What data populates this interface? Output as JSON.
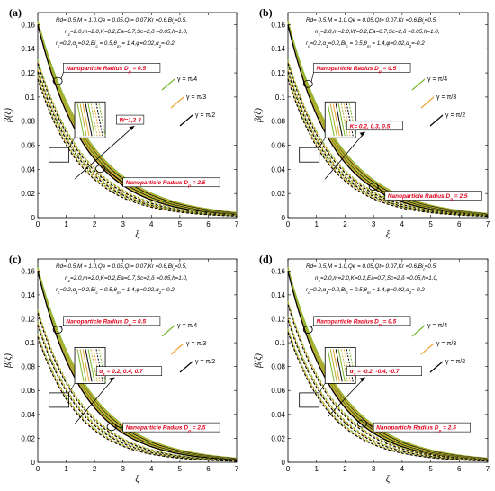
{
  "chart_data": [
    {
      "type": "line",
      "panel_label": "(a)",
      "xlabel": "ξ",
      "ylabel": "β(ξ)",
      "xlim": [
        0,
        7
      ],
      "ylim": [
        0,
        0.17
      ],
      "xticks": [
        "0",
        "1",
        "2",
        "3",
        "4",
        "5",
        "6",
        "7"
      ],
      "yticks": [
        "0",
        "0.02",
        "0.04",
        "0.06",
        "0.08",
        "0.1",
        "0.12",
        "0.14",
        "0.16"
      ],
      "params_line1": "Rd= 0.5,M = 1.0,Qe = 0.05,Qt= 0.07,Kr =0.6,Bi_t=0.5,",
      "params_line2": "n_1=2.0,m=2.0,K=0.2,Ea=0.7,Sc=2,δ =0.05,h=1.0,",
      "params_line3": "r_c=0.2,α_1=0.2,Bi_c = 0.5,θ_m = 1.4,φ=0.02,α_2=-0.2",
      "legend": [
        "γ = π/4",
        "γ = π/3",
        "γ = π/2"
      ],
      "annotation_small_radius": "Nanoparticle Radius D_p = 0.5",
      "annotation_large_radius": "Nanoparticle Radius D_p = 2.5",
      "annotation_param": "W=1,2 3",
      "solid_start": 0.163,
      "dashed_start": [
        0.131,
        0.124,
        0.118
      ],
      "decay_solid": 0.52,
      "decay_dashed": 0.58
    },
    {
      "type": "line",
      "panel_label": "(b)",
      "xlabel": "ξ",
      "ylabel": "β(ξ)",
      "xlim": [
        0,
        7
      ],
      "ylim": [
        0,
        0.17
      ],
      "xticks": [
        "0",
        "1",
        "2",
        "3",
        "4",
        "5",
        "6",
        "7"
      ],
      "yticks": [
        "0",
        "0.02",
        "0.04",
        "0.06",
        "0.08",
        "0.1",
        "0.12",
        "0.14",
        "0.16"
      ],
      "params_line1": "Rd= 0.5,M = 1.0,Qe = 0.05,Qt= 0.07,Kr =0.6,Bi_t=0.5,",
      "params_line2": "n_1=2.0,m=2.0,W=0.2,Ea=0.7,Sc=2,δ =0.05,h=1.0,",
      "params_line3": "r_c=0.2,α_1=0.2,Bi_c = 0.5,θ_m = 1.4,φ=0.02,α_2=-0.2",
      "legend": [
        "γ = π/4",
        "γ = π/3",
        "γ = π/2"
      ],
      "annotation_small_radius": "Nanoparticle Radius D_p = 0.5",
      "annotation_large_radius": "Nanoparticle Radius D_p = 2.5",
      "annotation_param": "K= 0.2, 0.3, 0.5",
      "solid_start": 0.163,
      "dashed_start": [
        0.131,
        0.124,
        0.118
      ],
      "decay_solid": 0.55,
      "decay_dashed": 0.6
    },
    {
      "type": "line",
      "panel_label": "(c)",
      "xlabel": "ξ",
      "ylabel": "β(ξ)",
      "xlim": [
        0,
        7
      ],
      "ylim": [
        0,
        0.17
      ],
      "xticks": [
        "0",
        "1",
        "2",
        "3",
        "4",
        "5",
        "6",
        "7"
      ],
      "yticks": [
        "0",
        "0.02",
        "0.04",
        "0.06",
        "0.08",
        "0.1",
        "0.12",
        "0.14",
        "0.16"
      ],
      "params_line1": "Rd= 0.5,M = 1.0,Qe = 0.05,Qt= 0.07,Kr =0.6,Bi_t=0.5,",
      "params_line2": "n_1=2.0,m=2.0,K=0.2,Ea=0.7,Sc=2,δ =0.05,h=1.0,",
      "params_line3": "r_c=0.2,α_1=0.2,Bi_c = 0.5,θ_m = 1.4,φ=0.02,α_2=-0.2",
      "legend": [
        "γ = π/4",
        "γ = π/3",
        "γ = π/2"
      ],
      "annotation_small_radius": "Nanoparticle Radius D_p = 0.5",
      "annotation_large_radius": "Nanoparticle Radius D_p = 2.5",
      "annotation_param": "α_1 = 0.2, 0.4, 0.7",
      "solid_start": 0.163,
      "dashed_start": [
        0.128,
        0.118,
        0.108
      ],
      "decay_solid": 0.55,
      "decay_dashed": 0.62
    },
    {
      "type": "line",
      "panel_label": "(d)",
      "xlabel": "ξ",
      "ylabel": "β(ξ)",
      "xlim": [
        0,
        7
      ],
      "ylim": [
        0,
        0.17
      ],
      "xticks": [
        "0",
        "1",
        "2",
        "3",
        "4",
        "5",
        "6",
        "7"
      ],
      "yticks": [
        "0",
        "0.02",
        "0.04",
        "0.06",
        "0.08",
        "0.1",
        "0.12",
        "0.14",
        "0.16"
      ],
      "params_line1": "Rd= 0.5,M = 1.0,Qe = 0.05,Qt= 0.07,Kr =0.6,Bi_t=0.5,",
      "params_line2": "n_1=2.0,m=2.0,K=0.2,Ea=0.7,Sc=2,δ =0.05,h=1.0,",
      "params_line3": "r_c=0.2,α_1=0.2,Bi_c = 0.5,θ_m = 1.4,φ=0.02,α_2=-0.2",
      "legend": [
        "γ = π/4",
        "γ = π/3",
        "γ = π/2"
      ],
      "annotation_small_radius": "Nanoparticle Radius D_p = 0.5",
      "annotation_large_radius": "Nanoparticle Radius D_p = 2.5",
      "annotation_param": "α_2 = -0.2, -0.4, -0.7",
      "solid_start": 0.163,
      "dashed_start": [
        0.135,
        0.122,
        0.112
      ],
      "decay_solid": 0.55,
      "decay_dashed": 0.6
    }
  ],
  "colors": {
    "series_pi4": "#77b82a",
    "series_pi3": "#f2a43a",
    "series_pi2": "#000000",
    "series_olive": "#b8b034",
    "annotation_red": "#e0001b"
  }
}
